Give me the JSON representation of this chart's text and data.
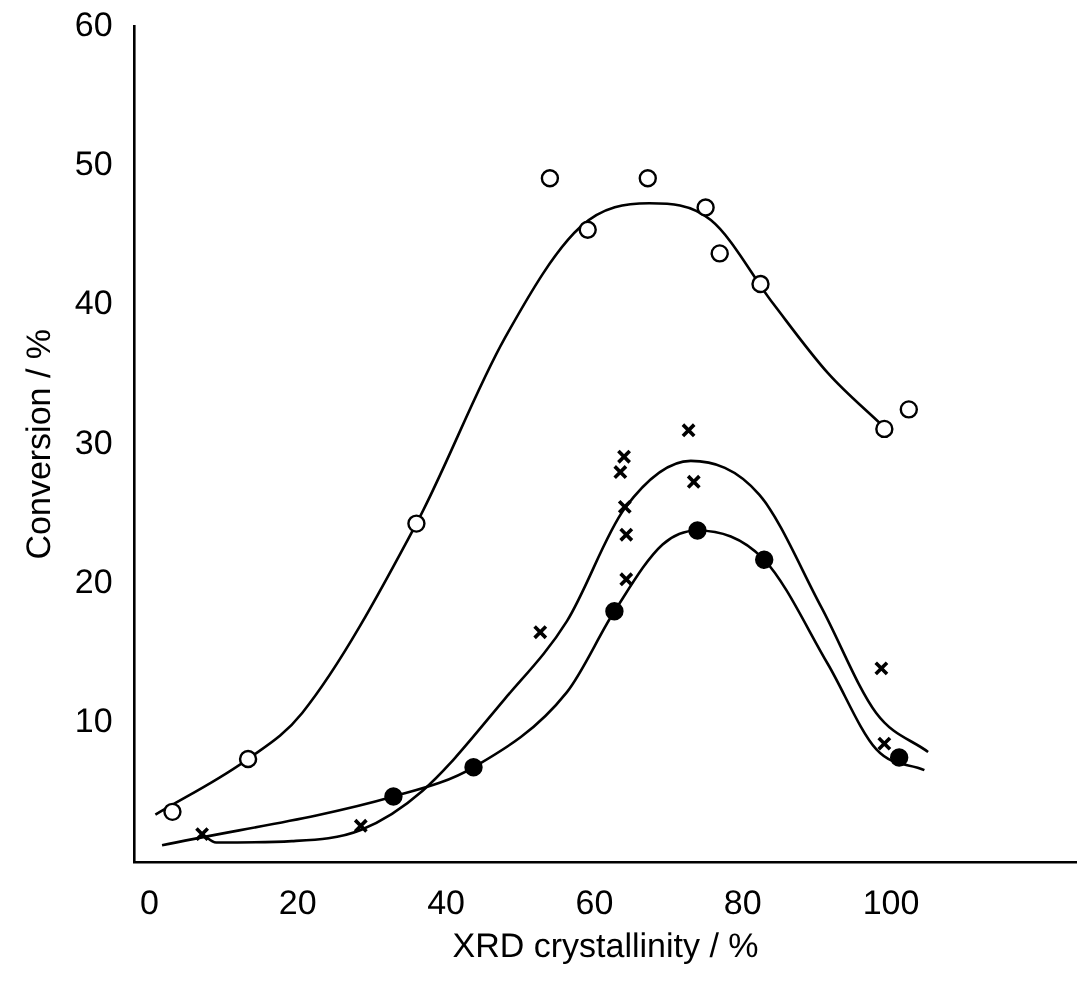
{
  "chart_data": {
    "type": "scatter",
    "xlabel": "XRD crystallinity / %",
    "ylabel": "Conversion / %",
    "xlim": [
      -2,
      125
    ],
    "ylim": [
      0,
      60
    ],
    "xticks": [
      0,
      20,
      40,
      60,
      80,
      100
    ],
    "yticks": [
      10,
      20,
      30,
      40,
      50,
      60
    ],
    "grid": false,
    "legend": false,
    "series": [
      {
        "marker": "circle",
        "color": "#000000",
        "x": [
          3.1,
          13.3,
          36.0,
          54.0,
          59.1,
          67.2,
          75.0,
          76.9,
          82.4,
          99.1,
          102.4
        ],
        "values": [
          3.6,
          7.4,
          24.3,
          49.1,
          45.4,
          49.1,
          47.0,
          43.7,
          41.5,
          31.1,
          32.5
        ]
      },
      {
        "marker": "cross",
        "color": "#000000",
        "x": [
          7.1,
          28.5,
          52.7,
          64.3,
          64.3,
          64.1,
          63.5,
          64.0,
          72.7,
          73.4,
          98.7,
          99.1
        ],
        "values": [
          2.0,
          2.6,
          16.5,
          20.3,
          23.5,
          25.5,
          28.0,
          29.1,
          31.0,
          27.3,
          13.9,
          8.5
        ]
      },
      {
        "marker": "circle",
        "color": "#000000",
        "x": [
          32.9,
          43.7,
          62.7,
          73.9,
          82.9,
          101.1
        ],
        "values": [
          4.7,
          6.8,
          18.0,
          23.8,
          21.7,
          7.5
        ]
      },
      {
        "type": "line",
        "marker": "none",
        "color": "#000000",
        "x": [
          0.8,
          13.3,
          20.6,
          36.0,
          47.9,
          58.1,
          67.4,
          75.7,
          84.1,
          91.5,
          98.9
        ],
        "values": [
          3.4,
          7.4,
          10.7,
          24.3,
          37.6,
          45.6,
          47.3,
          46.1,
          40.1,
          35.1,
          31.3
        ]
      },
      {
        "type": "line",
        "marker": "none",
        "color": "#000000",
        "x": [
          7.1,
          9.0,
          19.2,
          28.5,
          36.8,
          47.9,
          56.3,
          64.1,
          73.0,
          82.2,
          90.6,
          98.0,
          105.0
        ],
        "values": [
          2.0,
          1.4,
          1.5,
          2.3,
          5.1,
          11.7,
          17.3,
          25.4,
          28.8,
          26.4,
          18.3,
          10.7,
          7.9
        ]
      },
      {
        "type": "line",
        "marker": "none",
        "color": "#000000",
        "x": [
          1.7,
          32.9,
          43.7,
          56.3,
          62.7,
          69.2,
          73.9,
          82.9,
          91.5,
          98.0,
          104.5
        ],
        "values": [
          1.2,
          4.7,
          6.8,
          12.2,
          18.0,
          22.8,
          23.8,
          21.7,
          14.2,
          8.1,
          6.6
        ]
      }
    ]
  }
}
